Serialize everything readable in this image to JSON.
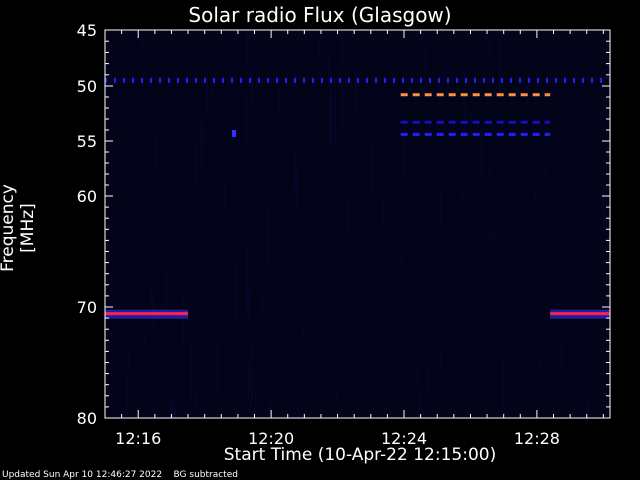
{
  "chart_data": {
    "type": "heatmap",
    "title": "Solar radio Flux (Glasgow)",
    "ylabel": "Frequency [MHz]",
    "xlabel": "Start Time (10-Apr-22 12:15:00)",
    "xlim": [
      0,
      15.2
    ],
    "ylim": [
      45,
      80
    ],
    "x_ticks": [
      {
        "value": 1,
        "label": "12:16"
      },
      {
        "value": 5,
        "label": "12:20"
      },
      {
        "value": 9,
        "label": "12:24"
      },
      {
        "value": 13,
        "label": "12:28"
      }
    ],
    "y_ticks": [
      {
        "value": 45,
        "label": "45"
      },
      {
        "value": 50,
        "label": "50"
      },
      {
        "value": 55,
        "label": "55"
      },
      {
        "value": 60,
        "label": "60"
      },
      {
        "value": 70,
        "label": "70"
      },
      {
        "value": 80,
        "label": "80"
      }
    ],
    "features": [
      {
        "name": "line-49.5-blue-dashed",
        "freq": 49.5,
        "x_start": 0,
        "x_end": 15.2,
        "color": "#2020ff",
        "style": "dashed"
      },
      {
        "name": "line-50.8-orange-dashed",
        "freq": 50.8,
        "x_start": 8.9,
        "x_end": 13.4,
        "color": "#ff9040",
        "style": "dashed"
      },
      {
        "name": "line-53.3-blue-dashed",
        "freq": 53.3,
        "x_start": 8.9,
        "x_end": 13.4,
        "color": "#1010c0",
        "style": "dashed"
      },
      {
        "name": "line-54.4-blue-dashed",
        "freq": 54.4,
        "x_start": 8.9,
        "x_end": 13.4,
        "color": "#2020ff",
        "style": "dashed"
      },
      {
        "name": "line-70.6-left",
        "freq": 70.6,
        "x_start": 0,
        "x_end": 2.5,
        "color": "#ff2050",
        "style": "solid"
      },
      {
        "name": "line-70.6-right",
        "freq": 70.6,
        "x_start": 13.4,
        "x_end": 15.2,
        "color": "#ff2050",
        "style": "solid"
      }
    ]
  },
  "footer": "Updated Sun Apr 10 12:46:27 2022    BG subtracted"
}
